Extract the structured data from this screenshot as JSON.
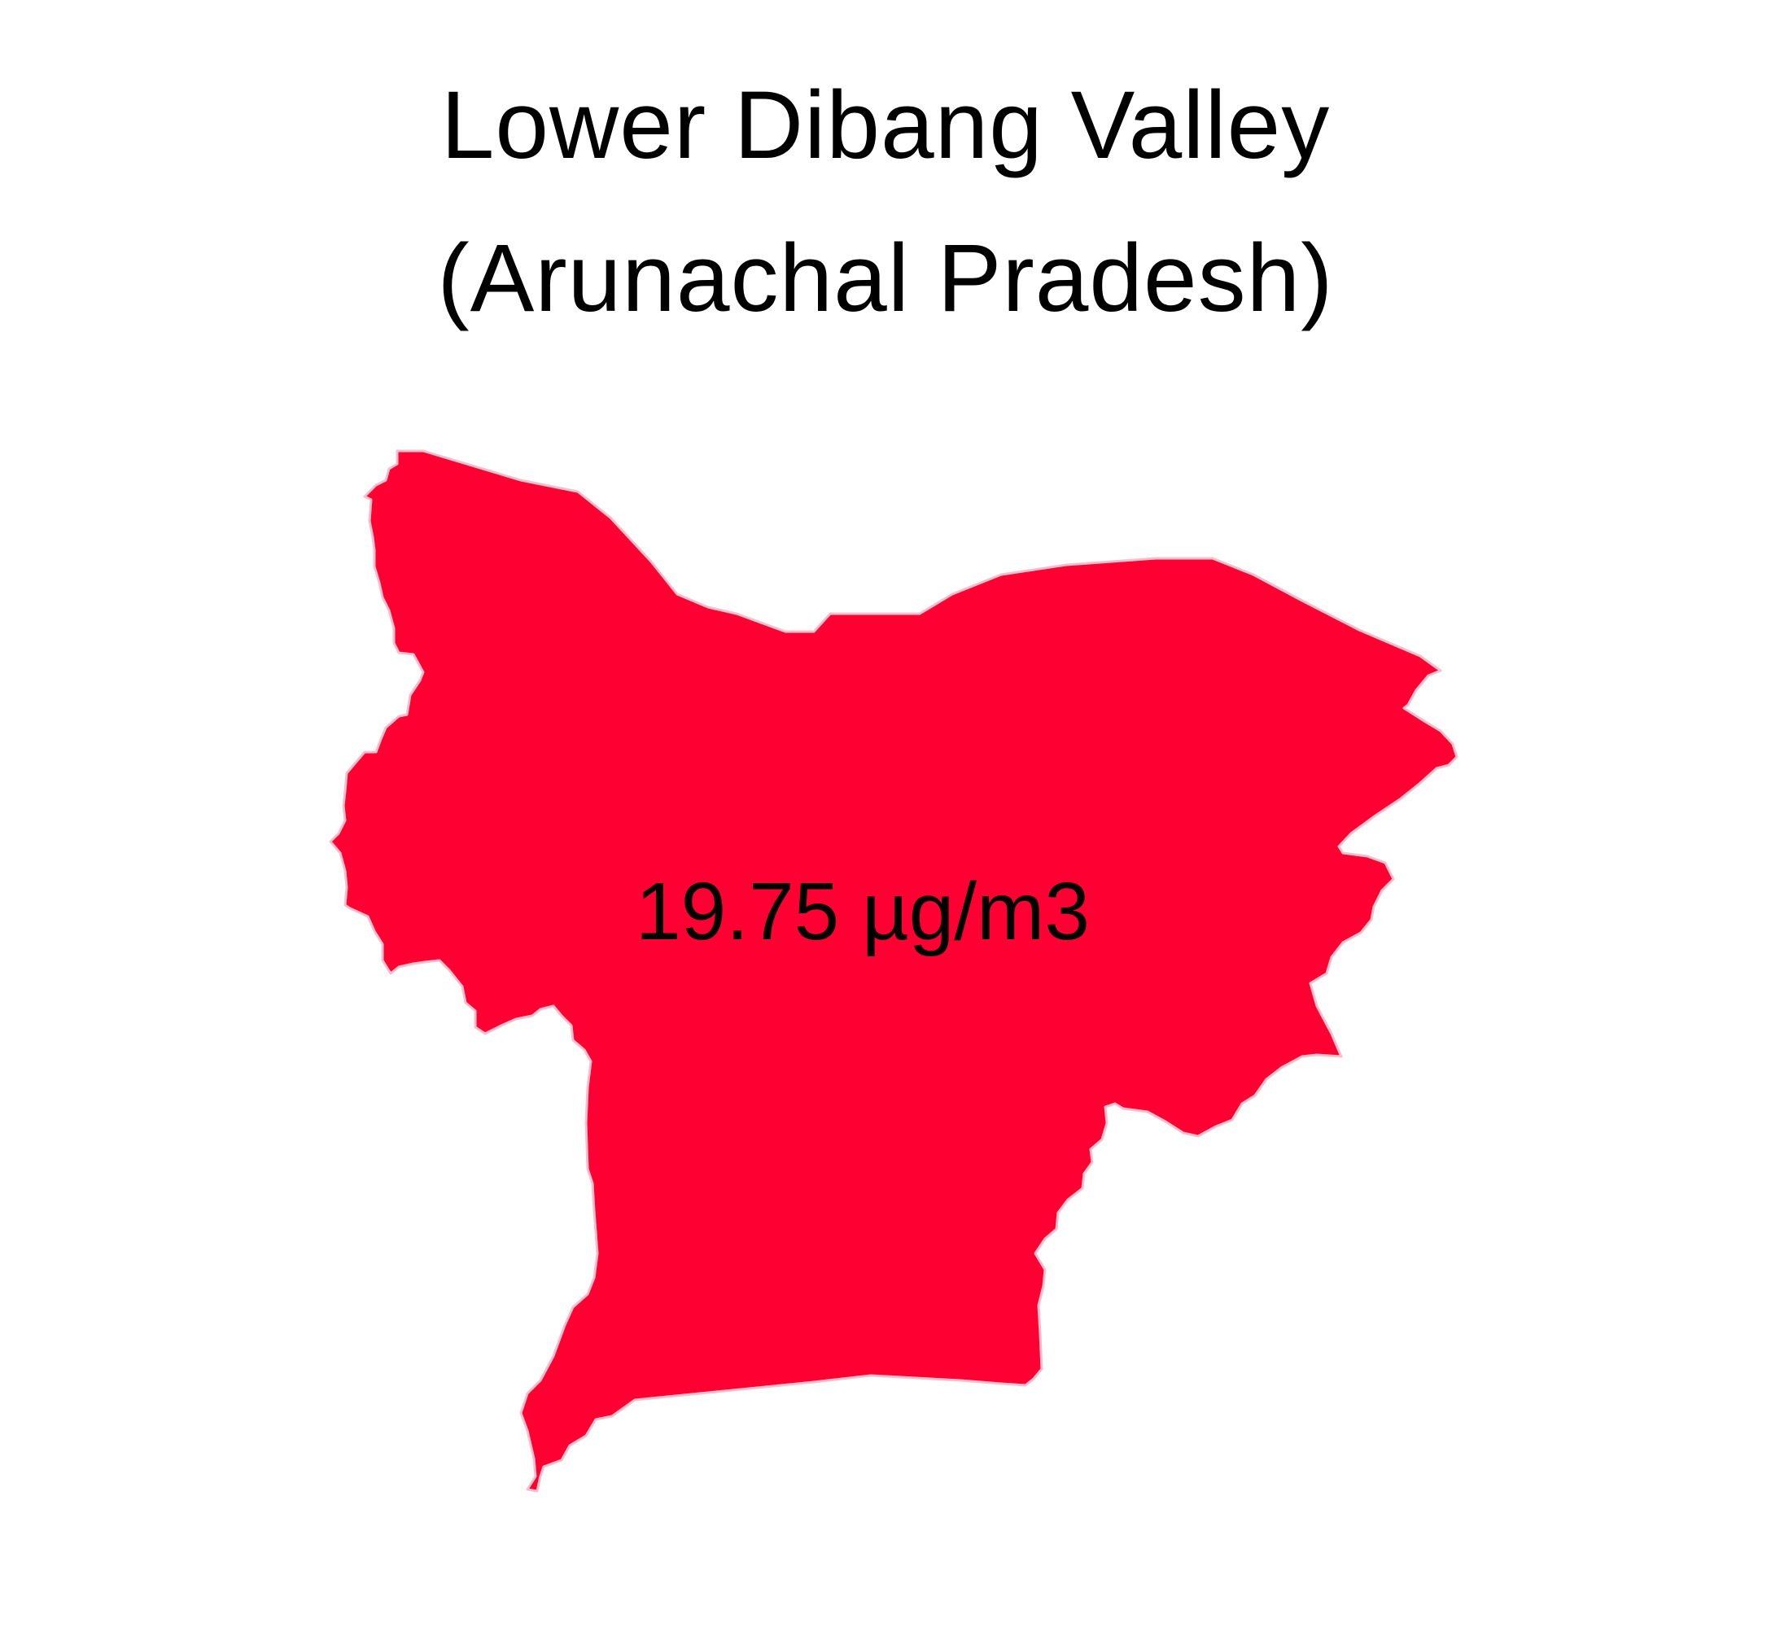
{
  "title": {
    "line1": "Lower Dibang Valley",
    "line2": "(Arunachal Pradesh)"
  },
  "map": {
    "region_name": "Lower Dibang Valley",
    "value_label": "19.75 µg/m3",
    "fill_color": "#FF0033",
    "outline_color": "#F5C0CC"
  }
}
